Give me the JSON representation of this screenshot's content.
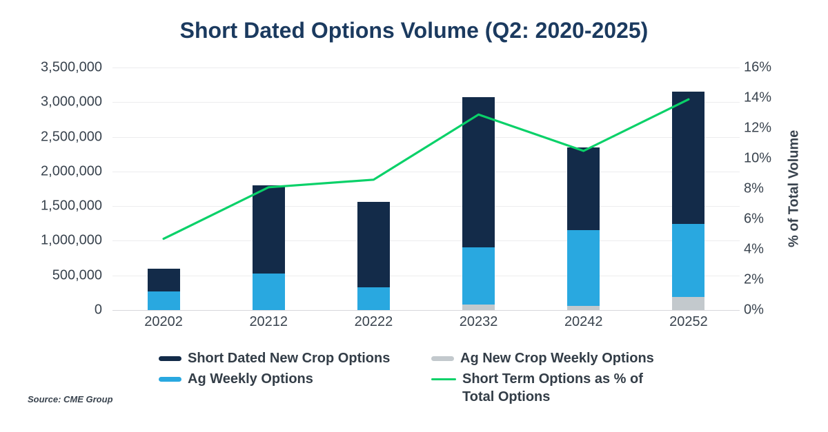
{
  "title": "Short Dated Options Volume (Q2: 2020-2025)",
  "source": "Source: CME Group",
  "colors": {
    "navy_bar": "#132b49",
    "blue_bar": "#29a8e0",
    "gray_bar": "#c3c9cd",
    "green_line": "#0ad169",
    "title_text": "#1b3a5f",
    "axis_text": "#39434e",
    "gridline": "#ececee",
    "zero_line": "#d7d7db"
  },
  "chart_data": {
    "type": "bar",
    "subtype": "stacked-bar-with-line",
    "title": "Short Dated Options Volume (Q2: 2020-2025)",
    "categories": [
      "20202",
      "20212",
      "20222",
      "20232",
      "20242",
      "20252"
    ],
    "series": [
      {
        "name": "Ag New Crop Weekly Options",
        "kind": "bar",
        "stack_order": "bottom",
        "color": "#c3c9cd",
        "values": [
          0,
          0,
          0,
          80000,
          60000,
          190000
        ]
      },
      {
        "name": "Ag Weekly Options",
        "kind": "bar",
        "stack_order": "middle",
        "color": "#29a8e0",
        "values": [
          270000,
          530000,
          330000,
          825000,
          1095000,
          1055000
        ]
      },
      {
        "name": "Short Dated New Crop Options",
        "kind": "bar",
        "stack_order": "top",
        "color": "#132b49",
        "values": [
          330000,
          1270000,
          1230000,
          2165000,
          1190000,
          1910000
        ]
      },
      {
        "name": "Short Term Options as % of Total Options",
        "kind": "line",
        "axis": "right",
        "color": "#0ad169",
        "values": [
          4.7,
          8.1,
          8.6,
          12.9,
          10.5,
          13.9
        ]
      }
    ],
    "stacked_totals": [
      600000,
      1800000,
      1560000,
      3070000,
      2345000,
      3155000
    ],
    "left_axis": {
      "min": 0,
      "max": 3500000,
      "step": 500000,
      "ticks": [
        "0",
        "500,000",
        "1,000,000",
        "1,500,000",
        "2,000,000",
        "2,500,000",
        "3,000,000",
        "3,500,000"
      ]
    },
    "right_axis": {
      "min": 0,
      "max": 16,
      "step": 2,
      "title": "% of Total Volume",
      "ticks": [
        "0%",
        "2%",
        "4%",
        "6%",
        "8%",
        "10%",
        "12%",
        "14%",
        "16%"
      ]
    },
    "grid": true,
    "legend_position": "bottom"
  },
  "legend": {
    "items": [
      {
        "label": "Short Dated New Crop Options",
        "swatch": "bar",
        "color": "#132b49"
      },
      {
        "label": "Ag New Crop Weekly Options",
        "swatch": "bar",
        "color": "#c3c9cd"
      },
      {
        "label": "Ag Weekly Options",
        "swatch": "bar",
        "color": "#29a8e0"
      },
      {
        "label": "Short Term Options as % of\nTotal Options",
        "swatch": "line",
        "color": "#0ad169"
      }
    ]
  }
}
